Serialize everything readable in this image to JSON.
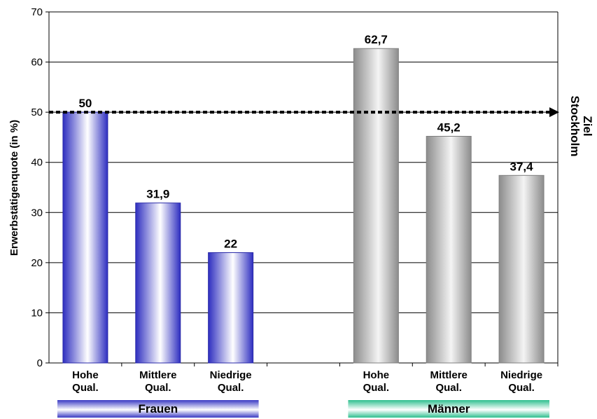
{
  "chart_data": {
    "type": "bar",
    "ylabel": "Erwerbstätigenquote (in %)",
    "ylim": [
      0,
      70
    ],
    "yticks": [
      0,
      10,
      20,
      30,
      40,
      50,
      60,
      70
    ],
    "grid": true,
    "groups": [
      {
        "name": "Frauen",
        "color": "#3a3ac4",
        "categories": [
          [
            "Hohe",
            "Qual."
          ],
          [
            "Mittlere",
            "Qual."
          ],
          [
            "Niedrige",
            "Qual."
          ]
        ],
        "values": [
          50,
          31.9,
          22
        ],
        "labels": [
          "50",
          "31,9",
          "22"
        ]
      },
      {
        "name": "Männer",
        "color": "#9a9a9a",
        "categories": [
          [
            "Hohe",
            "Qual."
          ],
          [
            "Mittlere",
            "Qual."
          ],
          [
            "Niedrige",
            "Qual."
          ]
        ],
        "values": [
          62.7,
          45.2,
          37.4
        ],
        "labels": [
          "62,7",
          "45,2",
          "37,4"
        ]
      }
    ],
    "target": {
      "value": 50,
      "label": [
        "Ziel",
        "Stockholm"
      ]
    },
    "group_label_colors": {
      "Frauen": "#3a3ac4",
      "Männer": "#2fbf8f"
    }
  }
}
